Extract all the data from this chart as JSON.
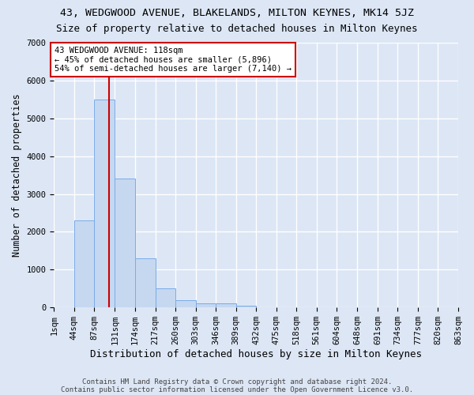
{
  "title1": "43, WEDGWOOD AVENUE, BLAKELANDS, MILTON KEYNES, MK14 5JZ",
  "title2": "Size of property relative to detached houses in Milton Keynes",
  "xlabel": "Distribution of detached houses by size in Milton Keynes",
  "ylabel": "Number of detached properties",
  "footnote1": "Contains HM Land Registry data © Crown copyright and database right 2024.",
  "footnote2": "Contains public sector information licensed under the Open Government Licence v3.0.",
  "bin_edges": [
    1,
    44,
    87,
    131,
    174,
    217,
    260,
    303,
    346,
    389,
    432,
    475,
    518,
    561,
    604,
    648,
    691,
    734,
    777,
    820,
    863
  ],
  "bar_heights": [
    0,
    2300,
    5500,
    3400,
    1300,
    500,
    200,
    100,
    100,
    50,
    0,
    0,
    0,
    0,
    0,
    0,
    0,
    0,
    0,
    0
  ],
  "bar_color": "#c5d8f0",
  "bar_edge_color": "#7aabe8",
  "vline_x": 118,
  "vline_color": "#cc0000",
  "annotation_text": "43 WEDGWOOD AVENUE: 118sqm\n← 45% of detached houses are smaller (5,896)\n54% of semi-detached houses are larger (7,140) →",
  "annotation_box_color": "white",
  "annotation_box_edge_color": "#cc0000",
  "ylim": [
    0,
    7000
  ],
  "yticks": [
    0,
    1000,
    2000,
    3000,
    4000,
    5000,
    6000,
    7000
  ],
  "bg_color": "#dce6f5",
  "plot_bg_color": "#dce6f5",
  "grid_color": "white",
  "title1_fontsize": 9.5,
  "title2_fontsize": 9,
  "xlabel_fontsize": 9,
  "ylabel_fontsize": 8.5,
  "tick_fontsize": 7.5,
  "footnote_fontsize": 6.5
}
